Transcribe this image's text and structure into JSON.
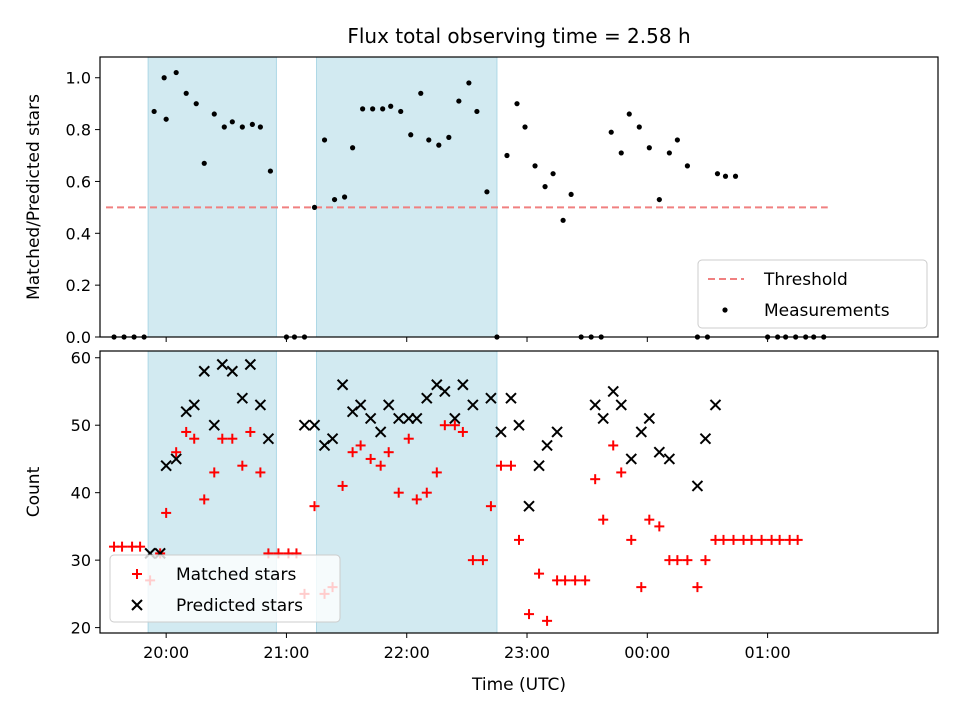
{
  "chart_data": {
    "type": "scatter",
    "title": "Flux total observing time = 2.58 h",
    "xlabel": "Time (UTC)",
    "x_tick_labels": [
      "20:00",
      "21:00",
      "22:00",
      "23:00",
      "00:00",
      "01:00"
    ],
    "x_ticks": [
      "20:00",
      "21:00",
      "22:00",
      "23:00",
      "24:00",
      "25:00"
    ],
    "x_range": [
      "19:27",
      "26:25"
    ],
    "shaded_intervals": [
      [
        "19:51",
        "20:55"
      ],
      [
        "21:15",
        "22:45"
      ]
    ],
    "colors": {
      "shade": "#add8e6",
      "threshold": "#f08080",
      "matched": "#ff0000",
      "predicted": "#000000",
      "measurement": "#000000"
    },
    "panels": [
      {
        "ylabel": "Matched/Predicted stars",
        "ylim": [
          0,
          1.08
        ],
        "y_ticks": [
          0.0,
          0.2,
          0.4,
          0.6,
          0.8,
          1.0
        ],
        "y_tick_labels": [
          "0.0",
          "0.2",
          "0.4",
          "0.6",
          "0.8",
          "1.0"
        ],
        "threshold": {
          "name": "Threshold",
          "value": 0.5,
          "x_start": "19:30",
          "x_end": "25:30"
        },
        "legend": {
          "position": "lower right",
          "entries": [
            "Threshold",
            "Measurements"
          ]
        },
        "series": [
          {
            "name": "Measurements",
            "style": "dot",
            "points": [
              [
                "19:34",
                0.0
              ],
              [
                "19:39",
                0.0
              ],
              [
                "19:44",
                0.0
              ],
              [
                "19:49",
                0.0
              ],
              [
                "19:54",
                0.87
              ],
              [
                "19:59",
                1.0
              ],
              [
                "20:00",
                0.84
              ],
              [
                "20:05",
                1.02
              ],
              [
                "20:10",
                0.94
              ],
              [
                "20:15",
                0.9
              ],
              [
                "20:19",
                0.67
              ],
              [
                "20:24",
                0.86
              ],
              [
                "20:29",
                0.81
              ],
              [
                "20:33",
                0.83
              ],
              [
                "20:38",
                0.81
              ],
              [
                "20:43",
                0.82
              ],
              [
                "20:47",
                0.81
              ],
              [
                "20:52",
                0.64
              ],
              [
                "21:00",
                0.0
              ],
              [
                "21:04",
                0.0
              ],
              [
                "21:09",
                0.0
              ],
              [
                "21:14",
                0.5
              ],
              [
                "21:19",
                0.76
              ],
              [
                "21:24",
                0.53
              ],
              [
                "21:29",
                0.54
              ],
              [
                "21:33",
                0.73
              ],
              [
                "21:38",
                0.88
              ],
              [
                "21:43",
                0.88
              ],
              [
                "21:48",
                0.88
              ],
              [
                "21:52",
                0.89
              ],
              [
                "21:57",
                0.87
              ],
              [
                "22:02",
                0.78
              ],
              [
                "22:07",
                0.94
              ],
              [
                "22:11",
                0.76
              ],
              [
                "22:16",
                0.74
              ],
              [
                "22:21",
                0.77
              ],
              [
                "22:26",
                0.91
              ],
              [
                "22:31",
                0.98
              ],
              [
                "22:35",
                0.87
              ],
              [
                "22:40",
                0.56
              ],
              [
                "22:45",
                0.0
              ],
              [
                "22:50",
                0.7
              ],
              [
                "22:55",
                0.9
              ],
              [
                "22:59",
                0.81
              ],
              [
                "23:04",
                0.66
              ],
              [
                "23:09",
                0.58
              ],
              [
                "23:13",
                0.63
              ],
              [
                "23:18",
                0.45
              ],
              [
                "23:22",
                0.55
              ],
              [
                "23:27",
                0.0
              ],
              [
                "23:32",
                0.0
              ],
              [
                "23:37",
                0.0
              ],
              [
                "23:42",
                0.79
              ],
              [
                "23:47",
                0.71
              ],
              [
                "23:51",
                0.86
              ],
              [
                "23:56",
                0.81
              ],
              [
                "24:01",
                0.73
              ],
              [
                "24:06",
                0.53
              ],
              [
                "24:11",
                0.71
              ],
              [
                "24:15",
                0.76
              ],
              [
                "24:20",
                0.66
              ],
              [
                "24:25",
                0.0
              ],
              [
                "24:30",
                0.0
              ],
              [
                "24:35",
                0.63
              ],
              [
                "24:39",
                0.62
              ],
              [
                "24:44",
                0.62
              ],
              [
                "25:00",
                0.0
              ],
              [
                "25:05",
                0.0
              ],
              [
                "25:09",
                0.0
              ],
              [
                "25:14",
                0.0
              ],
              [
                "25:19",
                0.0
              ],
              [
                "25:23",
                0.0
              ],
              [
                "25:28",
                0.0
              ]
            ]
          }
        ]
      },
      {
        "ylabel": "Count",
        "ylim": [
          19.2,
          61
        ],
        "y_ticks": [
          20,
          30,
          40,
          50,
          60
        ],
        "y_tick_labels": [
          "20",
          "30",
          "40",
          "50",
          "60"
        ],
        "legend": {
          "position": "lower left",
          "entries": [
            "Matched stars",
            "Predicted stars"
          ]
        },
        "series": [
          {
            "name": "Matched stars",
            "style": "plus",
            "points": [
              [
                "19:34",
                32
              ],
              [
                "19:38",
                32
              ],
              [
                "19:43",
                32
              ],
              [
                "19:47",
                32
              ],
              [
                "19:52",
                27
              ],
              [
                "19:57",
                31
              ],
              [
                "20:00",
                37
              ],
              [
                "20:05",
                46
              ],
              [
                "20:10",
                49
              ],
              [
                "20:14",
                48
              ],
              [
                "20:19",
                39
              ],
              [
                "20:24",
                43
              ],
              [
                "20:28",
                48
              ],
              [
                "20:33",
                48
              ],
              [
                "20:38",
                44
              ],
              [
                "20:42",
                49
              ],
              [
                "20:47",
                43
              ],
              [
                "20:51",
                31
              ],
              [
                "20:56",
                31
              ],
              [
                "21:01",
                31
              ],
              [
                "21:05",
                31
              ],
              [
                "21:09",
                25
              ],
              [
                "21:14",
                38
              ],
              [
                "21:19",
                25
              ],
              [
                "21:23",
                26
              ],
              [
                "21:28",
                41
              ],
              [
                "21:33",
                46
              ],
              [
                "21:37",
                47
              ],
              [
                "21:42",
                45
              ],
              [
                "21:47",
                44
              ],
              [
                "21:51",
                46
              ],
              [
                "21:56",
                40
              ],
              [
                "22:01",
                48
              ],
              [
                "22:05",
                39
              ],
              [
                "22:10",
                40
              ],
              [
                "22:15",
                43
              ],
              [
                "22:19",
                50
              ],
              [
                "22:24",
                50
              ],
              [
                "22:28",
                49
              ],
              [
                "22:33",
                30
              ],
              [
                "22:38",
                30
              ],
              [
                "22:42",
                38
              ],
              [
                "22:47",
                44
              ],
              [
                "22:52",
                44
              ],
              [
                "22:56",
                33
              ],
              [
                "23:01",
                22
              ],
              [
                "23:06",
                28
              ],
              [
                "23:10",
                21
              ],
              [
                "23:15",
                27
              ],
              [
                "23:19",
                27
              ],
              [
                "23:24",
                27
              ],
              [
                "23:29",
                27
              ],
              [
                "23:34",
                42
              ],
              [
                "23:38",
                36
              ],
              [
                "23:43",
                47
              ],
              [
                "23:47",
                43
              ],
              [
                "23:52",
                33
              ],
              [
                "23:57",
                26
              ],
              [
                "24:01",
                36
              ],
              [
                "24:06",
                35
              ],
              [
                "24:11",
                30
              ],
              [
                "24:15",
                30
              ],
              [
                "24:20",
                30
              ],
              [
                "24:25",
                26
              ],
              [
                "24:29",
                30
              ],
              [
                "24:34",
                33
              ],
              [
                "24:38",
                33
              ],
              [
                "24:43",
                33
              ],
              [
                "24:48",
                33
              ],
              [
                "24:52",
                33
              ],
              [
                "24:57",
                33
              ],
              [
                "25:02",
                33
              ],
              [
                "25:06",
                33
              ],
              [
                "25:11",
                33
              ],
              [
                "25:15",
                33
              ]
            ]
          },
          {
            "name": "Predicted stars",
            "style": "x",
            "points": [
              [
                "19:52",
                31
              ],
              [
                "19:57",
                31
              ],
              [
                "20:00",
                44
              ],
              [
                "20:05",
                45
              ],
              [
                "20:10",
                52
              ],
              [
                "20:14",
                53
              ],
              [
                "20:19",
                58
              ],
              [
                "20:24",
                50
              ],
              [
                "20:28",
                59
              ],
              [
                "20:33",
                58
              ],
              [
                "20:38",
                54
              ],
              [
                "20:42",
                59
              ],
              [
                "20:47",
                53
              ],
              [
                "20:51",
                48
              ],
              [
                "21:09",
                50
              ],
              [
                "21:14",
                50
              ],
              [
                "21:19",
                47
              ],
              [
                "21:23",
                48
              ],
              [
                "21:28",
                56
              ],
              [
                "21:33",
                52
              ],
              [
                "21:37",
                53
              ],
              [
                "21:42",
                51
              ],
              [
                "21:47",
                49
              ],
              [
                "21:51",
                53
              ],
              [
                "21:56",
                51
              ],
              [
                "22:01",
                51
              ],
              [
                "22:05",
                51
              ],
              [
                "22:10",
                54
              ],
              [
                "22:15",
                56
              ],
              [
                "22:19",
                55
              ],
              [
                "22:24",
                51
              ],
              [
                "22:28",
                56
              ],
              [
                "22:33",
                53
              ],
              [
                "22:42",
                54
              ],
              [
                "22:47",
                49
              ],
              [
                "22:52",
                54
              ],
              [
                "22:56",
                50
              ],
              [
                "23:01",
                38
              ],
              [
                "23:06",
                44
              ],
              [
                "23:10",
                47
              ],
              [
                "23:15",
                49
              ],
              [
                "23:34",
                53
              ],
              [
                "23:38",
                51
              ],
              [
                "23:43",
                55
              ],
              [
                "23:47",
                53
              ],
              [
                "23:52",
                45
              ],
              [
                "23:57",
                49
              ],
              [
                "24:01",
                51
              ],
              [
                "24:06",
                46
              ],
              [
                "24:11",
                45
              ],
              [
                "24:25",
                41
              ],
              [
                "24:29",
                48
              ],
              [
                "24:34",
                53
              ]
            ]
          }
        ]
      }
    ]
  }
}
